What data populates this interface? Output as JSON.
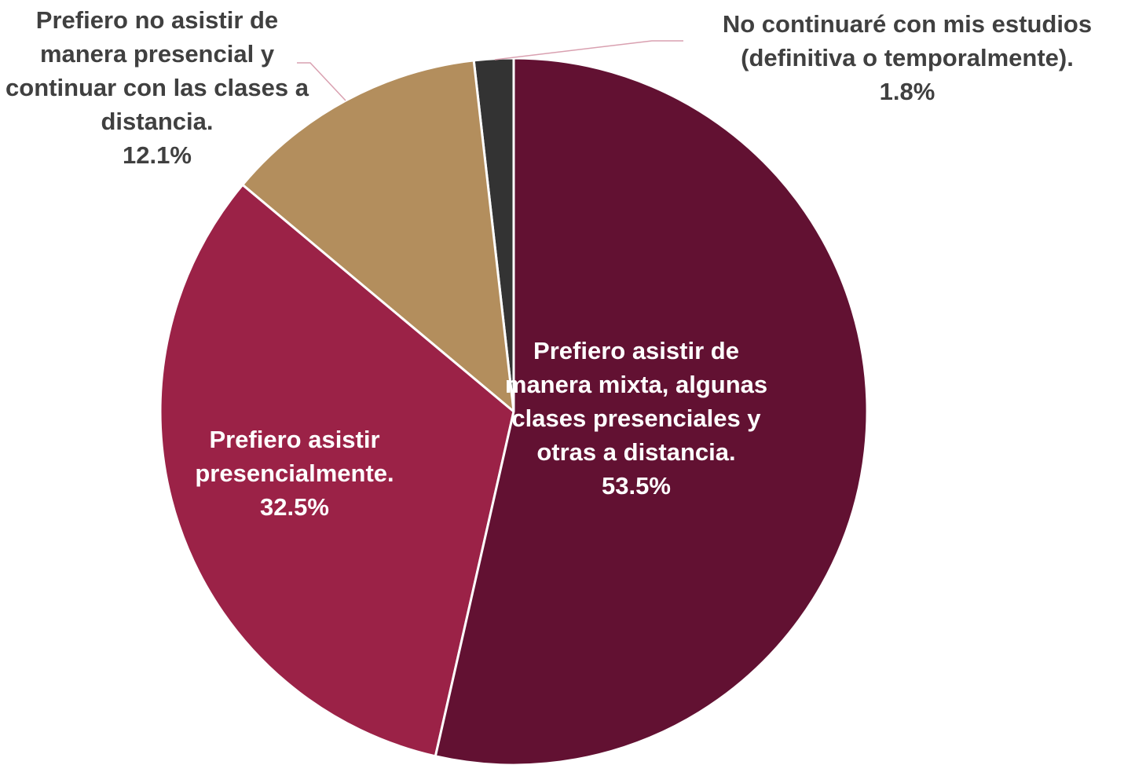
{
  "chart_data": {
    "type": "pie",
    "categories": [
      "Prefiero asistir de manera mixta, algunas clases presenciales y otras a distancia.",
      "Prefiero asistir presencialmente.",
      "Prefiero no asistir de manera presencial y continuar con las clases a distancia.",
      "No continuaré con mis estudios (definitiva o temporalmente)."
    ],
    "values": [
      53.5,
      32.5,
      12.1,
      1.8
    ],
    "value_labels": [
      "53.5%",
      "32.5%",
      "12.1%",
      "1.8%"
    ],
    "colors": [
      "#621132",
      "#9b2247",
      "#b38e5d",
      "#333333"
    ]
  }
}
